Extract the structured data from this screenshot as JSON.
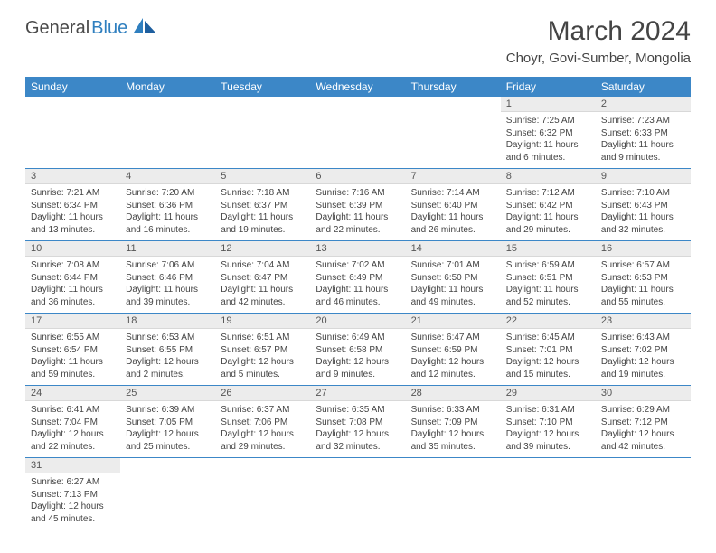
{
  "brand": {
    "part1": "General",
    "part2": "Blue"
  },
  "title": "March 2024",
  "location": "Choyr, Govi-Sumber, Mongolia",
  "colors": {
    "header_blue": "#3c87c7",
    "logo_blue": "#2f7fbf",
    "daynum_bg": "#ececec",
    "row_border": "#3c87c7",
    "text": "#444444",
    "background": "#ffffff"
  },
  "fonts": {
    "title_size": 30,
    "location_size": 15,
    "th_size": 12,
    "daynum_size": 11,
    "cell_size": 10
  },
  "dayNames": [
    "Sunday",
    "Monday",
    "Tuesday",
    "Wednesday",
    "Thursday",
    "Friday",
    "Saturday"
  ],
  "firstDayOffset": 5,
  "daysInMonth": 31,
  "days": {
    "1": {
      "sunrise": "7:25 AM",
      "sunset": "6:32 PM",
      "daylight": "11 hours and 6 minutes."
    },
    "2": {
      "sunrise": "7:23 AM",
      "sunset": "6:33 PM",
      "daylight": "11 hours and 9 minutes."
    },
    "3": {
      "sunrise": "7:21 AM",
      "sunset": "6:34 PM",
      "daylight": "11 hours and 13 minutes."
    },
    "4": {
      "sunrise": "7:20 AM",
      "sunset": "6:36 PM",
      "daylight": "11 hours and 16 minutes."
    },
    "5": {
      "sunrise": "7:18 AM",
      "sunset": "6:37 PM",
      "daylight": "11 hours and 19 minutes."
    },
    "6": {
      "sunrise": "7:16 AM",
      "sunset": "6:39 PM",
      "daylight": "11 hours and 22 minutes."
    },
    "7": {
      "sunrise": "7:14 AM",
      "sunset": "6:40 PM",
      "daylight": "11 hours and 26 minutes."
    },
    "8": {
      "sunrise": "7:12 AM",
      "sunset": "6:42 PM",
      "daylight": "11 hours and 29 minutes."
    },
    "9": {
      "sunrise": "7:10 AM",
      "sunset": "6:43 PM",
      "daylight": "11 hours and 32 minutes."
    },
    "10": {
      "sunrise": "7:08 AM",
      "sunset": "6:44 PM",
      "daylight": "11 hours and 36 minutes."
    },
    "11": {
      "sunrise": "7:06 AM",
      "sunset": "6:46 PM",
      "daylight": "11 hours and 39 minutes."
    },
    "12": {
      "sunrise": "7:04 AM",
      "sunset": "6:47 PM",
      "daylight": "11 hours and 42 minutes."
    },
    "13": {
      "sunrise": "7:02 AM",
      "sunset": "6:49 PM",
      "daylight": "11 hours and 46 minutes."
    },
    "14": {
      "sunrise": "7:01 AM",
      "sunset": "6:50 PM",
      "daylight": "11 hours and 49 minutes."
    },
    "15": {
      "sunrise": "6:59 AM",
      "sunset": "6:51 PM",
      "daylight": "11 hours and 52 minutes."
    },
    "16": {
      "sunrise": "6:57 AM",
      "sunset": "6:53 PM",
      "daylight": "11 hours and 55 minutes."
    },
    "17": {
      "sunrise": "6:55 AM",
      "sunset": "6:54 PM",
      "daylight": "11 hours and 59 minutes."
    },
    "18": {
      "sunrise": "6:53 AM",
      "sunset": "6:55 PM",
      "daylight": "12 hours and 2 minutes."
    },
    "19": {
      "sunrise": "6:51 AM",
      "sunset": "6:57 PM",
      "daylight": "12 hours and 5 minutes."
    },
    "20": {
      "sunrise": "6:49 AM",
      "sunset": "6:58 PM",
      "daylight": "12 hours and 9 minutes."
    },
    "21": {
      "sunrise": "6:47 AM",
      "sunset": "6:59 PM",
      "daylight": "12 hours and 12 minutes."
    },
    "22": {
      "sunrise": "6:45 AM",
      "sunset": "7:01 PM",
      "daylight": "12 hours and 15 minutes."
    },
    "23": {
      "sunrise": "6:43 AM",
      "sunset": "7:02 PM",
      "daylight": "12 hours and 19 minutes."
    },
    "24": {
      "sunrise": "6:41 AM",
      "sunset": "7:04 PM",
      "daylight": "12 hours and 22 minutes."
    },
    "25": {
      "sunrise": "6:39 AM",
      "sunset": "7:05 PM",
      "daylight": "12 hours and 25 minutes."
    },
    "26": {
      "sunrise": "6:37 AM",
      "sunset": "7:06 PM",
      "daylight": "12 hours and 29 minutes."
    },
    "27": {
      "sunrise": "6:35 AM",
      "sunset": "7:08 PM",
      "daylight": "12 hours and 32 minutes."
    },
    "28": {
      "sunrise": "6:33 AM",
      "sunset": "7:09 PM",
      "daylight": "12 hours and 35 minutes."
    },
    "29": {
      "sunrise": "6:31 AM",
      "sunset": "7:10 PM",
      "daylight": "12 hours and 39 minutes."
    },
    "30": {
      "sunrise": "6:29 AM",
      "sunset": "7:12 PM",
      "daylight": "12 hours and 42 minutes."
    },
    "31": {
      "sunrise": "6:27 AM",
      "sunset": "7:13 PM",
      "daylight": "12 hours and 45 minutes."
    }
  },
  "labels": {
    "sunrise": "Sunrise:",
    "sunset": "Sunset:",
    "daylight": "Daylight:"
  }
}
